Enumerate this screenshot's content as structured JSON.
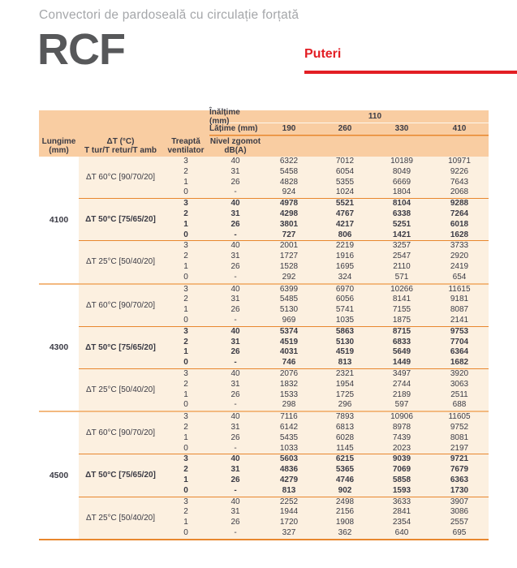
{
  "page": {
    "subtitle": "Convectori de pardoseală cu circulație forțată",
    "product": "RCF",
    "tab": "Puteri"
  },
  "colors": {
    "accent_red": "#E31E24",
    "header_bg": "#F9CDA2",
    "body_bg": "#FCF0E0",
    "line_orange": "#E8872E",
    "line_light": "#F3B97F",
    "text_dark": "#3B3B45",
    "title_gray": "#A5A7AA",
    "logo_gray": "#57585A"
  },
  "table": {
    "header": {
      "height_label": "Înălțime (mm)",
      "height_value": "110",
      "width_label": "Lățime (mm)",
      "width_values": [
        "190",
        "260",
        "330",
        "410"
      ],
      "col_length_1": "Lungime",
      "col_length_2": "(mm)",
      "col_dt_1": "ΔT (°C)",
      "col_dt_2": "T tur/T retur/T amb",
      "col_stage_1": "Treaptă",
      "col_stage_2": "ventilator",
      "col_noise_1": "Nivel zgomot",
      "col_noise_2": "dB(A)"
    },
    "groups": [
      {
        "length": "4100",
        "blocks": [
          {
            "dt": "ΔT 60°C [90/70/20]",
            "bold": false,
            "rows": [
              [
                "3",
                "40",
                "6322",
                "7012",
                "10189",
                "10971"
              ],
              [
                "2",
                "31",
                "5458",
                "6054",
                "8049",
                "9226"
              ],
              [
                "1",
                "26",
                "4828",
                "5355",
                "6669",
                "7643"
              ],
              [
                "0",
                "-",
                "924",
                "1024",
                "1804",
                "2068"
              ]
            ]
          },
          {
            "dt": "ΔT 50°C [75/65/20]",
            "bold": true,
            "rows": [
              [
                "3",
                "40",
                "4978",
                "5521",
                "8104",
                "9288"
              ],
              [
                "2",
                "31",
                "4298",
                "4767",
                "6338",
                "7264"
              ],
              [
                "1",
                "26",
                "3801",
                "4217",
                "5251",
                "6018"
              ],
              [
                "0",
                "-",
                "727",
                "806",
                "1421",
                "1628"
              ]
            ]
          },
          {
            "dt": "ΔT 25°C [50/40/20]",
            "bold": false,
            "rows": [
              [
                "3",
                "40",
                "2001",
                "2219",
                "3257",
                "3733"
              ],
              [
                "2",
                "31",
                "1727",
                "1916",
                "2547",
                "2920"
              ],
              [
                "1",
                "26",
                "1528",
                "1695",
                "2110",
                "2419"
              ],
              [
                "0",
                "-",
                "292",
                "324",
                "571",
                "654"
              ]
            ]
          }
        ]
      },
      {
        "length": "4300",
        "blocks": [
          {
            "dt": "ΔT 60°C [90/70/20]",
            "bold": false,
            "rows": [
              [
                "3",
                "40",
                "6399",
                "6970",
                "10266",
                "11615"
              ],
              [
                "2",
                "31",
                "5485",
                "6056",
                "8141",
                "9181"
              ],
              [
                "1",
                "26",
                "5130",
                "5741",
                "7155",
                "8087"
              ],
              [
                "0",
                "-",
                "969",
                "1035",
                "1875",
                "2141"
              ]
            ]
          },
          {
            "dt": "ΔT 50°C [75/65/20]",
            "bold": true,
            "rows": [
              [
                "3",
                "40",
                "5374",
                "5863",
                "8715",
                "9753"
              ],
              [
                "2",
                "31",
                "4519",
                "5130",
                "6833",
                "7704"
              ],
              [
                "1",
                "26",
                "4031",
                "4519",
                "5649",
                "6364"
              ],
              [
                "0",
                "-",
                "746",
                "813",
                "1449",
                "1682"
              ]
            ]
          },
          {
            "dt": "ΔT 25°C [50/40/20]",
            "bold": false,
            "rows": [
              [
                "3",
                "40",
                "2076",
                "2321",
                "3497",
                "3920"
              ],
              [
                "2",
                "31",
                "1832",
                "1954",
                "2744",
                "3063"
              ],
              [
                "1",
                "26",
                "1533",
                "1725",
                "2189",
                "2511"
              ],
              [
                "0",
                "-",
                "298",
                "296",
                "597",
                "688"
              ]
            ]
          }
        ]
      },
      {
        "length": "4500",
        "blocks": [
          {
            "dt": "ΔT 60°C [90/70/20]",
            "bold": false,
            "rows": [
              [
                "3",
                "40",
                "7116",
                "7893",
                "10906",
                "11605"
              ],
              [
                "2",
                "31",
                "6142",
                "6813",
                "8978",
                "9752"
              ],
              [
                "1",
                "26",
                "5435",
                "6028",
                "7439",
                "8081"
              ],
              [
                "0",
                "-",
                "1033",
                "1145",
                "2023",
                "2197"
              ]
            ]
          },
          {
            "dt": "ΔT 50°C [75/65/20]",
            "bold": true,
            "rows": [
              [
                "3",
                "40",
                "5603",
                "6215",
                "9039",
                "9721"
              ],
              [
                "2",
                "31",
                "4836",
                "5365",
                "7069",
                "7679"
              ],
              [
                "1",
                "26",
                "4279",
                "4746",
                "5858",
                "6363"
              ],
              [
                "0",
                "-",
                "813",
                "902",
                "1593",
                "1730"
              ]
            ]
          },
          {
            "dt": "ΔT 25°C [50/40/20]",
            "bold": false,
            "rows": [
              [
                "3",
                "40",
                "2252",
                "2498",
                "3633",
                "3907"
              ],
              [
                "2",
                "31",
                "1944",
                "2156",
                "2841",
                "3086"
              ],
              [
                "1",
                "26",
                "1720",
                "1908",
                "2354",
                "2557"
              ],
              [
                "0",
                "-",
                "327",
                "362",
                "640",
                "695"
              ]
            ]
          }
        ]
      }
    ]
  }
}
